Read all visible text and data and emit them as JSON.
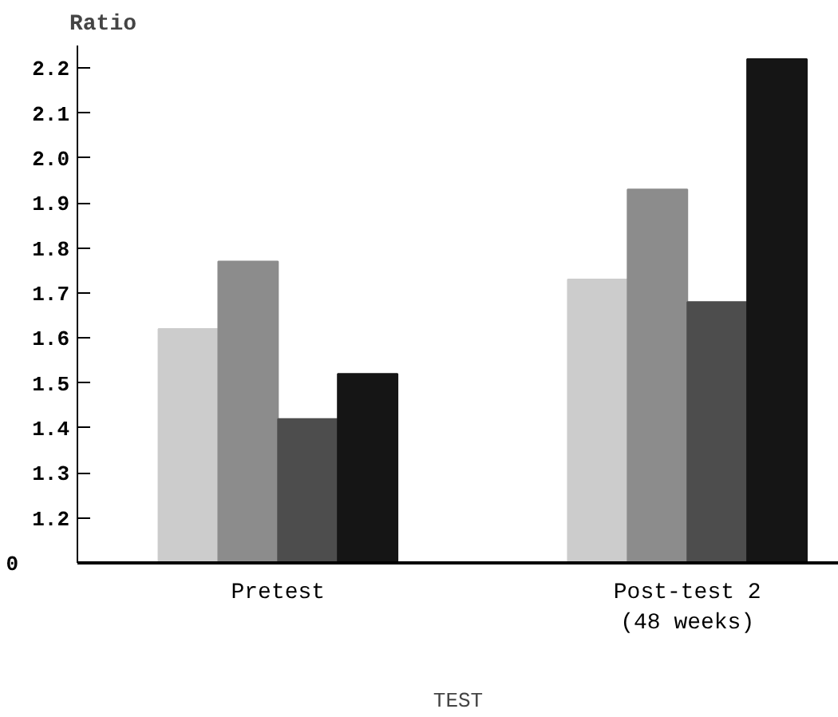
{
  "chart_data": {
    "type": "bar",
    "xlabel": "TEST",
    "ylabel": "Ratio",
    "categories": [
      "Pretest",
      "Post-test 2\n(48 weeks)"
    ],
    "series": [
      {
        "color": "#cccccc",
        "values": [
          1.62,
          1.73
        ]
      },
      {
        "color": "#8c8c8c",
        "values": [
          1.77,
          1.93
        ]
      },
      {
        "color": "#4d4d4d",
        "values": [
          1.42,
          1.68
        ]
      },
      {
        "color": "#151515",
        "values": [
          1.52,
          2.22
        ]
      }
    ],
    "ylim": [
      1.1,
      2.25
    ],
    "yticks": [
      1.2,
      1.3,
      1.4,
      1.5,
      1.6,
      1.7,
      1.8,
      1.9,
      {
        "value": 2,
        "label": "2.0"
      },
      2.1,
      2.2
    ],
    "annotations": [
      "0"
    ],
    "grid": false
  }
}
